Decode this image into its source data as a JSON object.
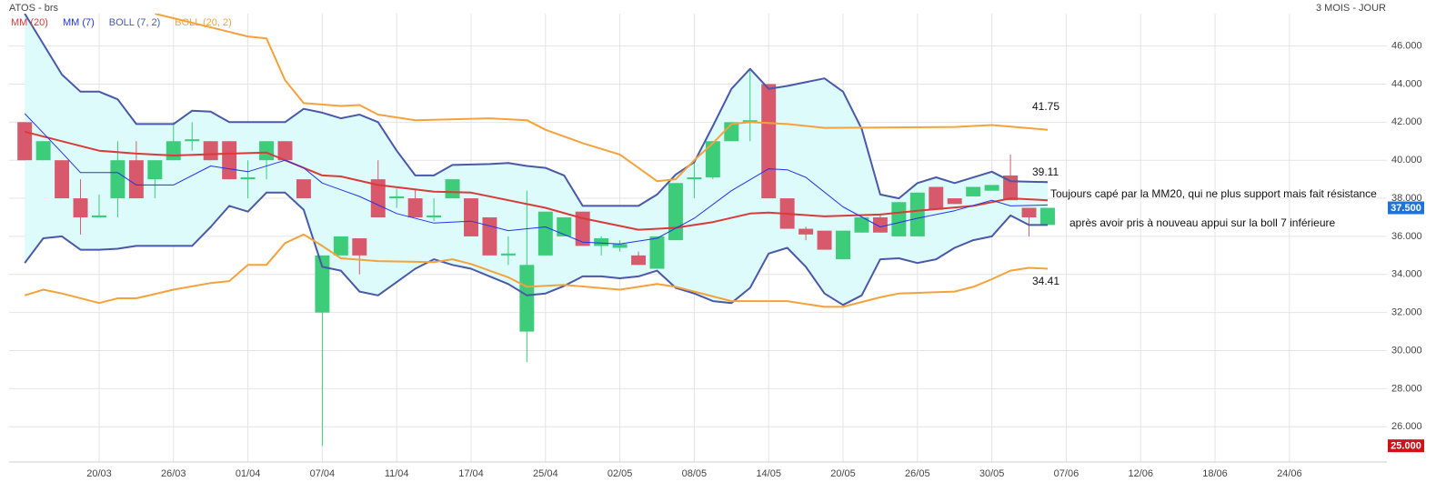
{
  "chart_data": {
    "type": "candlestick",
    "title": "ATOS - brs",
    "subtitle": "3 MOIS - JOUR",
    "up_color": "#3ccc7a",
    "down_color": "#d9596c",
    "grid": true,
    "xlim": [
      -0.84,
      73.24
    ],
    "ylim": [
      24.15,
      47.7
    ],
    "xticks": [
      {
        "value": 4,
        "label": "20/03"
      },
      {
        "value": 8,
        "label": "26/03"
      },
      {
        "value": 12,
        "label": "01/04"
      },
      {
        "value": 16,
        "label": "07/04"
      },
      {
        "value": 20,
        "label": "11/04"
      },
      {
        "value": 24,
        "label": "17/04"
      },
      {
        "value": 28,
        "label": "25/04"
      },
      {
        "value": 32,
        "label": "02/05"
      },
      {
        "value": 36,
        "label": "08/05"
      },
      {
        "value": 40,
        "label": "14/05"
      },
      {
        "value": 44,
        "label": "20/05"
      },
      {
        "value": 48,
        "label": "26/05"
      },
      {
        "value": 52,
        "label": "30/05"
      },
      {
        "value": 56,
        "label": "07/06"
      },
      {
        "value": 60,
        "label": "12/06"
      },
      {
        "value": 64,
        "label": "18/06"
      },
      {
        "value": 68,
        "label": "24/06"
      }
    ],
    "yticks": [
      {
        "value": 26,
        "label": "26.000"
      },
      {
        "value": 28,
        "label": "28.000"
      },
      {
        "value": 30,
        "label": "30.000"
      },
      {
        "value": 32,
        "label": "32.000"
      },
      {
        "value": 34,
        "label": "34.000"
      },
      {
        "value": 36,
        "label": "36.000"
      },
      {
        "value": 38,
        "label": "38.000"
      },
      {
        "value": 40,
        "label": "40.000"
      },
      {
        "value": 42,
        "label": "42.000"
      },
      {
        "value": 44,
        "label": "44.000"
      },
      {
        "value": 46,
        "label": "46.000"
      }
    ],
    "x": [
      0,
      1,
      2,
      3,
      4,
      5,
      6,
      7,
      8,
      9,
      10,
      11,
      12,
      13,
      14,
      15,
      16,
      17,
      18,
      19,
      20,
      21,
      22,
      23,
      24,
      25,
      26,
      27,
      28,
      29,
      30,
      31,
      32,
      33,
      34,
      35,
      36,
      37,
      38,
      39,
      40,
      41,
      42,
      43,
      44,
      45,
      46,
      47,
      48,
      49,
      50,
      51,
      52,
      53,
      54,
      55
    ],
    "open": [
      42,
      40,
      40,
      38,
      37,
      38,
      40,
      39,
      40,
      41,
      41,
      41,
      39,
      40,
      41,
      39,
      32,
      35,
      35.9,
      39,
      38,
      38,
      37,
      38,
      38,
      37,
      35,
      31,
      35,
      36,
      37.3,
      35.5,
      35.4,
      35,
      34.3,
      35.8,
      39,
      39.1,
      41,
      42,
      44,
      38,
      36.4,
      36.3,
      34.8,
      36.2,
      37,
      36,
      36,
      38.6,
      38,
      38.1,
      38.4,
      39.2,
      37.5,
      36.6
    ],
    "high": [
      42,
      41,
      40,
      39,
      38.2,
      41,
      41,
      40,
      42,
      42,
      41,
      41,
      40,
      41,
      41,
      39,
      35,
      36,
      35.9,
      40,
      38.5,
      38.5,
      38,
      39,
      38,
      37,
      36,
      38.4,
      37.3,
      37,
      37.3,
      36,
      35.8,
      35.2,
      36,
      38.8,
      40,
      41,
      42,
      44.8,
      44,
      38,
      36.5,
      36.3,
      36.3,
      37,
      37.2,
      37.8,
      38.3,
      38.6,
      38,
      38.6,
      38.7,
      40.3,
      37.5,
      37.5
    ],
    "low": [
      40,
      40,
      38,
      36.1,
      37,
      37,
      38,
      38,
      40,
      40.5,
      40,
      39,
      38,
      39,
      40,
      38,
      25,
      35,
      34,
      37,
      37.5,
      37,
      36.8,
      38,
      36,
      35,
      34.5,
      29.4,
      35,
      36,
      35.5,
      35,
      35.2,
      34.5,
      34.3,
      35.8,
      38,
      39,
      41,
      41,
      38,
      36.4,
      35.8,
      35.3,
      34.8,
      36.2,
      36.2,
      36,
      36,
      37.4,
      37.7,
      38.1,
      38.4,
      37.9,
      36,
      36.6
    ],
    "close": [
      40,
      41,
      38,
      37,
      37.1,
      40,
      38,
      40,
      41,
      41.1,
      40,
      39,
      39.1,
      41,
      40,
      38,
      35,
      36,
      35,
      37,
      38.1,
      37,
      37.1,
      39,
      36,
      35,
      35.1,
      34.5,
      37.3,
      37,
      35.5,
      35.9,
      35.6,
      34.5,
      36,
      38.8,
      39.1,
      41,
      42,
      42.1,
      38,
      36.4,
      36.1,
      35.3,
      36.3,
      37,
      36.2,
      37.8,
      38.3,
      37.4,
      37.7,
      38.6,
      38.7,
      37.9,
      37,
      37.5
    ],
    "series": [
      {
        "name": "MM (20)",
        "color": "#d93a3a",
        "x": [
          0,
          2,
          4,
          6,
          8,
          11,
          13,
          14,
          16,
          17,
          19,
          22,
          24,
          28,
          30,
          33,
          35,
          37,
          39,
          40,
          43,
          46,
          48,
          51,
          53,
          55
        ],
        "values": [
          41.5,
          41.0,
          40.5,
          40.35,
          40.25,
          40.35,
          40.4,
          40.0,
          39.2,
          39.15,
          38.7,
          38.35,
          38.3,
          37.5,
          36.95,
          36.35,
          36.45,
          36.75,
          37.2,
          37.25,
          37.05,
          37.15,
          37.35,
          37.6,
          38.0,
          37.9
        ]
      },
      {
        "name": "MM (7)",
        "color": "#2233ee",
        "x": [
          0,
          2,
          3,
          5,
          6,
          8,
          10,
          12,
          14,
          15,
          16,
          18,
          20,
          22,
          24,
          26,
          28,
          30,
          32,
          34,
          36,
          38,
          40,
          41,
          42,
          44,
          46,
          48,
          50,
          52,
          53,
          55
        ],
        "values": [
          42.45,
          40.4,
          39.35,
          39.35,
          38.7,
          38.7,
          39.7,
          39.4,
          40.0,
          39.6,
          38.8,
          38.1,
          37.2,
          36.7,
          36.8,
          36.3,
          36.5,
          35.7,
          35.6,
          35.9,
          36.95,
          38.4,
          39.55,
          39.5,
          39.1,
          37.55,
          36.5,
          36.95,
          37.35,
          37.9,
          37.6,
          37.65
        ]
      },
      {
        "name": "BOLL (7, 2)",
        "color": "#4a58a8",
        "fill": "#dcfbfa",
        "upper": {
          "x": [
            0,
            2,
            3,
            4,
            5,
            6,
            8,
            9,
            10,
            11,
            14,
            15,
            16,
            17,
            18,
            19,
            20,
            21,
            22,
            23,
            25,
            26,
            27,
            28,
            29,
            30,
            33,
            34,
            35,
            36,
            37,
            38,
            39,
            40,
            41,
            43,
            44,
            45,
            46,
            47,
            48,
            49,
            50,
            52,
            53,
            55
          ],
          "values": [
            47.7,
            44.5,
            43.6,
            43.6,
            43.2,
            41.9,
            41.9,
            42.6,
            42.55,
            42.0,
            42.0,
            42.7,
            42.5,
            42.2,
            42.4,
            42.0,
            40.5,
            39.2,
            39.2,
            39.75,
            39.8,
            39.85,
            39.7,
            39.6,
            39.2,
            37.6,
            37.6,
            38.2,
            39.25,
            39.9,
            41.8,
            43.75,
            44.8,
            43.75,
            43.9,
            44.3,
            43.6,
            41.65,
            38.2,
            38.0,
            38.8,
            39.1,
            38.8,
            39.4,
            38.9,
            38.85
          ]
        },
        "lower": {
          "x": [
            0,
            1,
            2,
            3,
            4,
            5,
            6,
            9,
            10,
            11,
            12,
            13,
            14,
            15,
            16,
            17,
            18,
            19,
            20,
            21,
            22,
            23,
            24,
            25,
            26,
            27,
            28,
            29,
            30,
            31,
            32,
            33,
            34,
            35,
            36,
            37,
            38,
            39,
            40,
            41,
            42,
            43,
            44,
            45,
            46,
            47,
            48,
            49,
            50,
            51,
            52,
            53,
            54,
            55
          ],
          "values": [
            34.6,
            35.9,
            36.0,
            35.3,
            35.3,
            35.35,
            35.5,
            35.5,
            36.5,
            37.6,
            37.3,
            38.3,
            38.3,
            37.4,
            34.4,
            34.2,
            33.1,
            32.9,
            33.6,
            34.3,
            34.8,
            34.5,
            34.3,
            33.9,
            33.5,
            32.9,
            33.0,
            33.4,
            33.9,
            33.9,
            33.8,
            33.9,
            34.2,
            33.3,
            33.0,
            32.6,
            32.5,
            33.3,
            35.1,
            35.4,
            34.4,
            33.0,
            32.4,
            32.9,
            34.8,
            34.85,
            34.6,
            34.8,
            35.4,
            35.8,
            36.0,
            37.1,
            36.6,
            36.6
          ]
        }
      },
      {
        "name": "BOLL (20, 2)",
        "color": "#f5a23c",
        "upper": {
          "x": [
            7,
            12,
            13,
            14,
            15,
            17,
            18,
            19,
            21,
            25,
            27,
            28,
            30,
            32,
            33,
            34,
            35,
            36,
            37,
            38,
            39,
            41,
            43,
            50,
            52,
            55
          ],
          "values": [
            47.7,
            46.5,
            46.4,
            44.2,
            43.0,
            42.85,
            42.9,
            42.4,
            42.1,
            42.2,
            42.1,
            41.6,
            40.9,
            40.3,
            39.6,
            38.9,
            39.0,
            40.0,
            40.9,
            41.9,
            42.0,
            41.9,
            41.7,
            41.75,
            41.85,
            41.6
          ]
        },
        "lower": {
          "x": [
            0,
            1,
            2,
            4,
            5,
            6,
            8,
            10,
            11,
            12,
            13,
            14,
            15,
            16,
            17,
            19,
            22,
            23,
            24,
            26,
            27,
            29,
            32,
            34,
            35,
            36,
            38,
            41,
            43,
            44,
            46,
            47,
            50,
            51,
            52,
            53,
            54,
            55
          ],
          "values": [
            32.9,
            33.2,
            33.0,
            32.5,
            32.75,
            32.75,
            33.2,
            33.55,
            33.65,
            34.5,
            34.5,
            35.65,
            36.1,
            35.5,
            34.85,
            34.7,
            34.65,
            34.8,
            34.55,
            33.85,
            33.35,
            33.45,
            33.2,
            33.5,
            33.35,
            33.1,
            32.6,
            32.6,
            32.3,
            32.3,
            32.8,
            33.0,
            33.1,
            33.35,
            33.75,
            34.2,
            34.35,
            34.3
          ]
        }
      }
    ],
    "markers": [
      {
        "value": 37.5,
        "label": "37.500",
        "color": "#1e74d6"
      },
      {
        "value": 25.0,
        "label": "25.000",
        "color": "#d0101a"
      }
    ],
    "annotations": [
      {
        "text": "41.75"
      },
      {
        "text": "39.11"
      },
      {
        "text": "34.41"
      },
      {
        "text": "Toujours capé par la MM20, qui ne plus support mais fait résistance"
      },
      {
        "text": "après avoir pris à nouveau appui sur la boll 7 inférieure"
      }
    ]
  }
}
